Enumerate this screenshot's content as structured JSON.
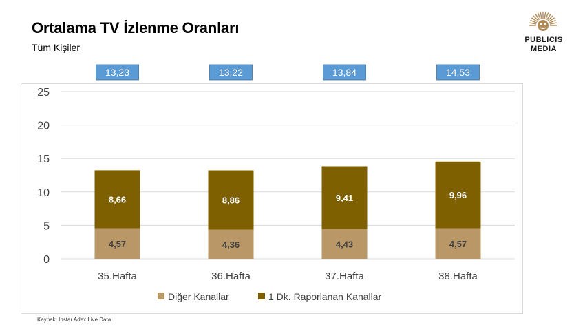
{
  "header": {
    "title": "Ortalama TV İzlenme Oranları",
    "subtitle": "Tüm Kişiler"
  },
  "logo": {
    "line1": "PUBLICIS",
    "line2": "MEDIA",
    "icon": "sun-icon",
    "color": "#b08a56"
  },
  "source": "Kaynak: Instar  Adex Live Data",
  "chart_data": {
    "type": "bar",
    "stacked": true,
    "categories": [
      "35.Hafta",
      "36.Hafta",
      "37.Hafta",
      "38.Hafta"
    ],
    "series": [
      {
        "name": "Diğer Kanallar",
        "values": [
          4.57,
          4.36,
          4.43,
          4.57
        ],
        "labels": [
          "4,57",
          "4,36",
          "4,43",
          "4,57"
        ],
        "color": "#b99767"
      },
      {
        "name": "1 Dk. Raporlanan Kanallar",
        "values": [
          8.66,
          8.86,
          9.41,
          9.96
        ],
        "labels": [
          "8,66",
          "8,86",
          "9,41",
          "9,96"
        ],
        "color": "#7f6000"
      }
    ],
    "totals": [
      13.23,
      13.22,
      13.84,
      14.53
    ],
    "total_labels": [
      "13,23",
      "13,22",
      "13,84",
      "14,53"
    ],
    "total_box_color": "#5b9bd5",
    "ylim": [
      0,
      25
    ],
    "yticks": [
      0,
      5,
      10,
      15,
      20,
      25
    ],
    "grid": true,
    "legend_position": "bottom"
  }
}
